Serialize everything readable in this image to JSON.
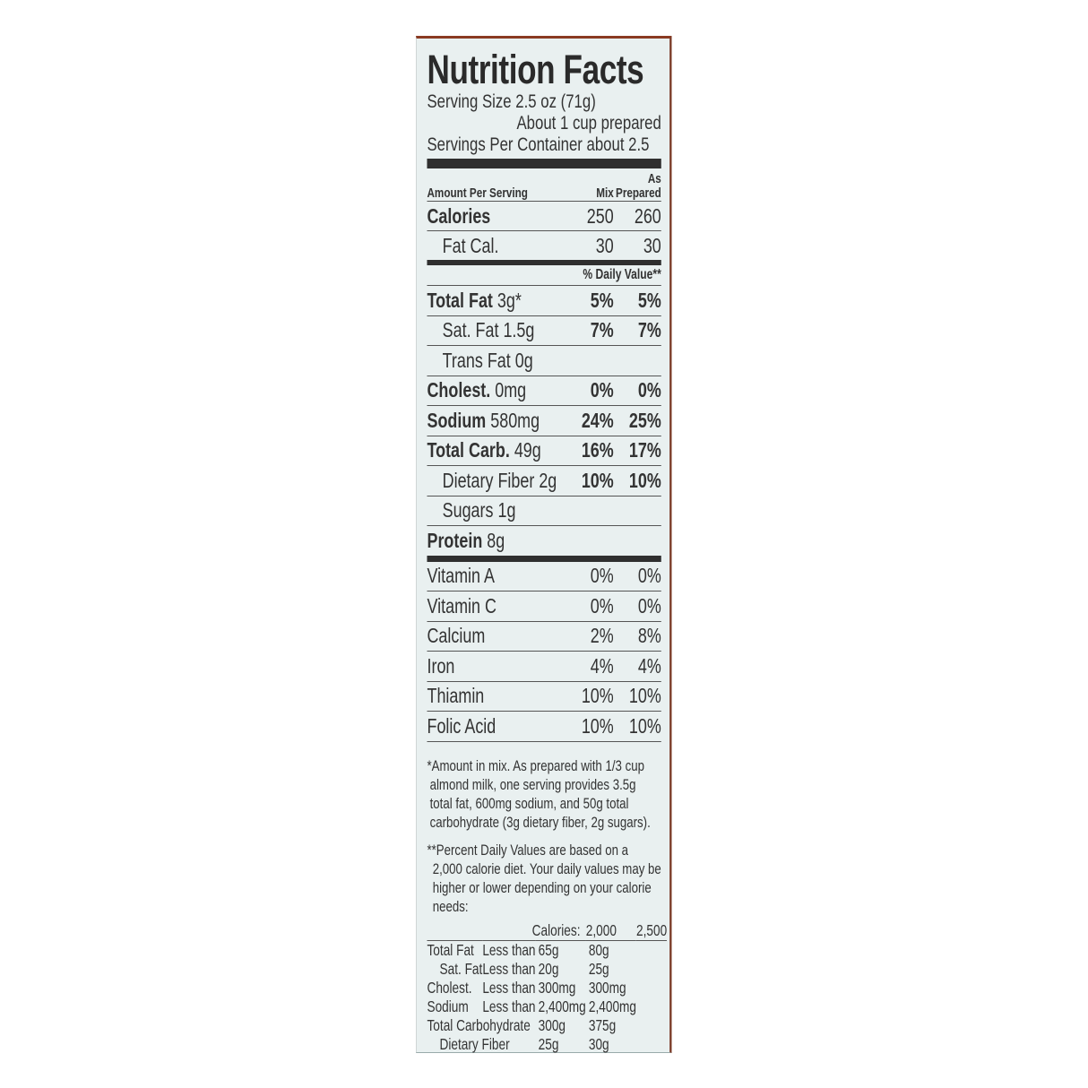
{
  "title": "Nutrition Facts",
  "serving_size": "Serving Size 2.5 oz (71g)",
  "serving_note": "About 1 cup prepared",
  "servings_per_container": "Servings Per Container about 2.5",
  "header": {
    "amount": "Amount Per Serving",
    "col1": "Mix",
    "col2_top": "As",
    "col2": "Prepared"
  },
  "calories": {
    "label": "Calories",
    "mix": "250",
    "prepared": "260"
  },
  "fat_cal": {
    "label": "Fat Cal.",
    "mix": "30",
    "prepared": "30"
  },
  "daily_value_header": "% Daily Value**",
  "nutrients": [
    {
      "name": "Total Fat",
      "amount": "3g*",
      "mix": "5%",
      "prepared": "5%",
      "bold": true,
      "indent": false
    },
    {
      "name": "Sat. Fat",
      "amount": "1.5g",
      "mix": "7%",
      "prepared": "7%",
      "bold": false,
      "indent": true
    },
    {
      "name": "Trans Fat",
      "amount": "0g",
      "mix": "",
      "prepared": "",
      "bold": false,
      "indent": true
    },
    {
      "name": "Cholest.",
      "amount": "0mg",
      "mix": "0%",
      "prepared": "0%",
      "bold": true,
      "indent": false
    },
    {
      "name": "Sodium",
      "amount": "580mg",
      "mix": "24%",
      "prepared": "25%",
      "bold": true,
      "indent": false
    },
    {
      "name": "Total Carb.",
      "amount": "49g",
      "mix": "16%",
      "prepared": "17%",
      "bold": true,
      "indent": false
    },
    {
      "name": "Dietary Fiber",
      "amount": "2g",
      "mix": "10%",
      "prepared": "10%",
      "bold": false,
      "indent": true
    },
    {
      "name": "Sugars",
      "amount": "1g",
      "mix": "",
      "prepared": "",
      "bold": false,
      "indent": true
    },
    {
      "name": "Protein",
      "amount": "8g",
      "mix": "",
      "prepared": "",
      "bold": true,
      "indent": false
    }
  ],
  "vitamins": [
    {
      "name": "Vitamin A",
      "mix": "0%",
      "prepared": "0%"
    },
    {
      "name": "Vitamin C",
      "mix": "0%",
      "prepared": "0%"
    },
    {
      "name": "Calcium",
      "mix": "2%",
      "prepared": "8%"
    },
    {
      "name": "Iron",
      "mix": "4%",
      "prepared": "4%"
    },
    {
      "name": "Thiamin",
      "mix": "10%",
      "prepared": "10%"
    },
    {
      "name": "Folic Acid",
      "mix": "10%",
      "prepared": "10%"
    }
  ],
  "footnote1": "*Amount in mix. As prepared with 1/3 cup almond milk, one serving provides 3.5g total fat, 600mg sodium, and 50g total carbohydrate (3g dietary fiber, 2g sugars).",
  "footnote2": "**Percent Daily Values are based on a 2,000 calorie diet. Your daily values may be higher or lower depending on your calorie needs:",
  "dv_table": {
    "header": [
      "",
      "",
      "Calories:",
      "2,000",
      "2,500"
    ],
    "rows": [
      [
        "Total Fat",
        "Less than",
        "65g",
        "80g"
      ],
      [
        "Sat. Fat",
        "Less than",
        "20g",
        "25g"
      ],
      [
        "Cholest.",
        "Less than",
        "300mg",
        "300mg"
      ],
      [
        "Sodium",
        "Less than",
        "2,400mg",
        "2,400mg"
      ],
      [
        "Total Carbohydrate",
        "",
        "300g",
        "375g"
      ],
      [
        "Dietary Fiber",
        "",
        "25g",
        "30g"
      ]
    ]
  }
}
